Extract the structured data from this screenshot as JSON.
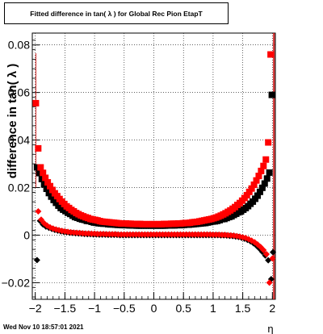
{
  "chart_data": {
    "type": "scatter",
    "title": "Fitted difference in tan( λ ) for Global Rec Pion EtapT",
    "xlabel": "η",
    "ylabel": "difference in tan( λ )",
    "xlim": [
      -2.05,
      2.05
    ],
    "ylim": [
      -0.027,
      0.085
    ],
    "x_ticks": [
      -2,
      -1.5,
      -1,
      -0.5,
      0,
      0.5,
      1,
      1.5,
      2
    ],
    "x_tick_labels": [
      "−2",
      "−1.5",
      "−1",
      "−0.5",
      "0",
      "0.5",
      "1",
      "1.5",
      "2"
    ],
    "y_ticks": [
      -0.02,
      0,
      0.02,
      0.04,
      0.06,
      0.08
    ],
    "y_tick_labels": [
      "−0.02",
      "0",
      "0.02",
      "0.04",
      "0.06",
      "0.08"
    ],
    "grid": true,
    "colors": {
      "black_series": "#000000",
      "red_series": "#ff0000",
      "marker_line": "#cc0000"
    },
    "markers": {
      "square_series": "square",
      "diamond_series": "diamond"
    },
    "series": [
      {
        "color": "black",
        "marker": "square",
        "x": [
          -1.97,
          -1.93,
          -1.89,
          -1.85,
          -1.81,
          -1.77,
          -1.73,
          -1.69,
          -1.65,
          -1.61,
          -1.57,
          -1.53,
          -1.49,
          -1.45,
          -1.41,
          -1.37,
          -1.33,
          -1.29,
          -1.25,
          -1.21,
          -1.17,
          -1.13,
          -1.09,
          -1.05,
          -1.01,
          -0.97,
          -0.93,
          -0.89,
          -0.85,
          -0.81,
          -0.77,
          -0.73,
          -0.69,
          -0.65,
          -0.61,
          -0.57,
          -0.53,
          -0.49,
          -0.45,
          -0.41,
          -0.37,
          -0.33,
          -0.29,
          -0.25,
          -0.21,
          -0.17,
          -0.13,
          -0.09,
          -0.05,
          -0.01,
          0.03,
          0.07,
          0.11,
          0.15,
          0.19,
          0.23,
          0.27,
          0.31,
          0.35,
          0.39,
          0.43,
          0.47,
          0.51,
          0.55,
          0.59,
          0.63,
          0.67,
          0.71,
          0.75,
          0.79,
          0.83,
          0.87,
          0.91,
          0.95,
          0.99,
          1.03,
          1.07,
          1.11,
          1.15,
          1.19,
          1.23,
          1.27,
          1.31,
          1.35,
          1.39,
          1.43,
          1.47,
          1.51,
          1.55,
          1.59,
          1.63,
          1.67,
          1.71,
          1.75,
          1.79,
          1.83,
          1.87,
          1.91,
          1.95,
          1.99
        ],
        "y": [
          0.0285,
          0.0261,
          0.0236,
          0.0213,
          0.0195,
          0.0177,
          0.0162,
          0.0148,
          0.0136,
          0.0124,
          0.0114,
          0.0107,
          0.0101,
          0.0094,
          0.0089,
          0.0082,
          0.0076,
          0.0073,
          0.0069,
          0.0066,
          0.0064,
          0.006,
          0.0059,
          0.0056,
          0.0053,
          0.0052,
          0.005,
          0.0049,
          0.0048,
          0.0048,
          0.0046,
          0.0045,
          0.0045,
          0.0044,
          0.0043,
          0.0043,
          0.0042,
          0.0042,
          0.0042,
          0.0041,
          0.0041,
          0.0041,
          0.004,
          0.004,
          0.004,
          0.004,
          0.004,
          0.004,
          0.004,
          0.004,
          0.004,
          0.004,
          0.004,
          0.004,
          0.004,
          0.0041,
          0.0041,
          0.0041,
          0.0041,
          0.0042,
          0.0042,
          0.0042,
          0.0043,
          0.0044,
          0.0044,
          0.0045,
          0.0046,
          0.0047,
          0.0048,
          0.0049,
          0.005,
          0.0051,
          0.0053,
          0.0055,
          0.0057,
          0.0058,
          0.006,
          0.0063,
          0.0067,
          0.0068,
          0.0072,
          0.0076,
          0.0079,
          0.0085,
          0.009,
          0.0096,
          0.01,
          0.0107,
          0.0114,
          0.0122,
          0.0132,
          0.0141,
          0.0153,
          0.0166,
          0.0182,
          0.0199,
          0.0217,
          0.0238,
          0.0263,
          0.059
        ]
      },
      {
        "color": "red",
        "marker": "square",
        "x": [
          -1.99,
          -1.95,
          -1.91,
          -1.87,
          -1.83,
          -1.79,
          -1.75,
          -1.71,
          -1.67,
          -1.63,
          -1.59,
          -1.55,
          -1.51,
          -1.47,
          -1.43,
          -1.39,
          -1.35,
          -1.31,
          -1.27,
          -1.23,
          -1.19,
          -1.15,
          -1.11,
          -1.07,
          -1.03,
          -0.99,
          -0.95,
          -0.91,
          -0.87,
          -0.83,
          -0.79,
          -0.75,
          -0.71,
          -0.67,
          -0.63,
          -0.59,
          -0.55,
          -0.51,
          -0.47,
          -0.43,
          -0.39,
          -0.35,
          -0.31,
          -0.27,
          -0.23,
          -0.19,
          -0.15,
          -0.11,
          -0.07,
          -0.03,
          0.01,
          0.05,
          0.09,
          0.13,
          0.17,
          0.21,
          0.25,
          0.29,
          0.33,
          0.37,
          0.41,
          0.45,
          0.49,
          0.53,
          0.57,
          0.61,
          0.65,
          0.69,
          0.73,
          0.77,
          0.81,
          0.85,
          0.89,
          0.93,
          0.97,
          1.01,
          1.05,
          1.09,
          1.13,
          1.17,
          1.21,
          1.25,
          1.29,
          1.33,
          1.37,
          1.41,
          1.45,
          1.49,
          1.53,
          1.57,
          1.61,
          1.65,
          1.69,
          1.73,
          1.77,
          1.81,
          1.85,
          1.89,
          1.93,
          1.97
        ],
        "y": [
          0.0555,
          0.0365,
          0.0285,
          0.0262,
          0.0241,
          0.0222,
          0.0206,
          0.019,
          0.0176,
          0.0164,
          0.0152,
          0.0141,
          0.0131,
          0.0121,
          0.0114,
          0.0106,
          0.01,
          0.0093,
          0.0088,
          0.0083,
          0.0079,
          0.0075,
          0.0072,
          0.0068,
          0.0066,
          0.0064,
          0.0062,
          0.0059,
          0.0057,
          0.0056,
          0.0055,
          0.0054,
          0.0053,
          0.0052,
          0.0051,
          0.005,
          0.0049,
          0.0049,
          0.0049,
          0.0048,
          0.0048,
          0.0047,
          0.0047,
          0.0047,
          0.0047,
          0.0046,
          0.0046,
          0.0046,
          0.0046,
          0.0046,
          0.0046,
          0.0046,
          0.0046,
          0.0046,
          0.0047,
          0.0047,
          0.0047,
          0.0048,
          0.0048,
          0.0048,
          0.0049,
          0.0049,
          0.005,
          0.0051,
          0.0051,
          0.0052,
          0.0054,
          0.0055,
          0.0056,
          0.0058,
          0.006,
          0.0062,
          0.0064,
          0.0066,
          0.0068,
          0.0071,
          0.0074,
          0.0078,
          0.0082,
          0.0087,
          0.0092,
          0.0098,
          0.0104,
          0.0111,
          0.0118,
          0.0127,
          0.0135,
          0.0145,
          0.0156,
          0.0168,
          0.0182,
          0.0196,
          0.0212,
          0.023,
          0.0249,
          0.027,
          0.0291,
          0.0318,
          0.039,
          0.076
        ]
      },
      {
        "color": "black",
        "marker": "diamond",
        "x": [
          -1.97,
          -1.92,
          -1.87,
          -1.82,
          -1.77,
          -1.72,
          -1.67,
          -1.62,
          -1.57,
          -1.52,
          -1.47,
          -1.42,
          -1.37,
          -1.32,
          -1.27,
          -1.22,
          -1.17,
          -1.12,
          -1.07,
          -1.02,
          -0.97,
          -0.92,
          -0.87,
          -0.82,
          -0.77,
          -0.72,
          -0.67,
          -0.62,
          -0.57,
          -0.52,
          -0.47,
          -0.42,
          -0.37,
          -0.32,
          -0.27,
          -0.22,
          -0.17,
          -0.12,
          -0.07,
          -0.02,
          0.03,
          0.08,
          0.13,
          0.18,
          0.23,
          0.28,
          0.33,
          0.38,
          0.43,
          0.48,
          0.53,
          0.58,
          0.63,
          0.68,
          0.73,
          0.78,
          0.83,
          0.88,
          0.93,
          0.98,
          1.03,
          1.08,
          1.13,
          1.18,
          1.23,
          1.28,
          1.33,
          1.38,
          1.43,
          1.48,
          1.53,
          1.58,
          1.63,
          1.68,
          1.73,
          1.78,
          1.83,
          1.88,
          1.93,
          1.98,
          2.01
        ],
        "y": [
          -0.0105,
          0.006,
          0.0045,
          0.0036,
          0.0031,
          0.0026,
          0.0022,
          0.0019,
          0.0016,
          0.0014,
          0.0012,
          0.001,
          0.0009,
          0.0008,
          0.0007,
          0.0006,
          0.0005,
          0.0004,
          0.0004,
          0.0003,
          0.0003,
          0.0002,
          0.0002,
          0.0002,
          0.0001,
          0.0001,
          0.0001,
          0.0001,
          0.0,
          0.0,
          0.0,
          0.0,
          0.0,
          0.0,
          0.0,
          0.0,
          0.0,
          0.0,
          0.0,
          0.0,
          0.0,
          0.0,
          0.0,
          0.0,
          0.0,
          0.0,
          0.0,
          0.0,
          0.0,
          0.0,
          0.0,
          0.0,
          0.0,
          0.0,
          0.0,
          0.0,
          0.0,
          0.0,
          0.0,
          0.0,
          0.0,
          0.0,
          -0.0001,
          -0.0001,
          -0.0002,
          -0.0003,
          -0.0004,
          -0.0006,
          -0.0008,
          -0.0011,
          -0.0015,
          -0.002,
          -0.0026,
          -0.0034,
          -0.0044,
          -0.0056,
          -0.007,
          -0.0086,
          -0.0106,
          -0.0185,
          -0.0072
        ]
      },
      {
        "color": "red",
        "marker": "diamond",
        "x": [
          -1.95,
          -1.9,
          -1.85,
          -1.8,
          -1.75,
          -1.7,
          -1.65,
          -1.6,
          -1.55,
          -1.5,
          -1.45,
          -1.4,
          -1.35,
          -1.3,
          -1.25,
          -1.2,
          -1.15,
          -1.1,
          -1.05,
          -1.0,
          -0.95,
          -0.9,
          -0.85,
          -0.8,
          -0.75,
          -0.7,
          -0.65,
          -0.6,
          -0.55,
          -0.5,
          -0.45,
          -0.4,
          -0.35,
          -0.3,
          -0.25,
          -0.2,
          -0.15,
          -0.1,
          -0.05,
          0.0,
          0.05,
          0.1,
          0.15,
          0.2,
          0.25,
          0.3,
          0.35,
          0.4,
          0.45,
          0.5,
          0.55,
          0.6,
          0.65,
          0.7,
          0.75,
          0.8,
          0.85,
          0.9,
          0.95,
          1.0,
          1.05,
          1.1,
          1.15,
          1.2,
          1.25,
          1.3,
          1.35,
          1.4,
          1.45,
          1.5,
          1.55,
          1.6,
          1.65,
          1.7,
          1.75,
          1.8,
          1.85,
          1.9,
          1.95,
          2.0
        ],
        "y": [
          0.01,
          0.0065,
          0.005,
          0.004,
          0.0033,
          0.0028,
          0.0024,
          0.0021,
          0.0018,
          0.0016,
          0.0014,
          0.0012,
          0.0011,
          0.001,
          0.0009,
          0.0008,
          0.0007,
          0.0007,
          0.0006,
          0.0006,
          0.0005,
          0.0005,
          0.0005,
          0.0004,
          0.0004,
          0.0004,
          0.0004,
          0.0003,
          0.0003,
          0.0003,
          0.0003,
          0.0003,
          0.0003,
          0.0003,
          0.0003,
          0.0003,
          0.0003,
          0.0003,
          0.0003,
          0.0003,
          0.0003,
          0.0003,
          0.0003,
          0.0003,
          0.0003,
          0.0003,
          0.0003,
          0.0003,
          0.0003,
          0.0003,
          0.0003,
          0.0003,
          0.0003,
          0.0003,
          0.0003,
          0.0003,
          0.0003,
          0.0003,
          0.0003,
          0.0002,
          0.0002,
          0.0002,
          0.0001,
          0.0001,
          0.0,
          -0.0001,
          -0.0002,
          -0.0004,
          -0.0006,
          -0.0009,
          -0.0012,
          -0.0017,
          -0.0023,
          -0.003,
          -0.0039,
          -0.005,
          -0.0063,
          -0.008,
          -0.02,
          -0.0098
        ]
      }
    ]
  },
  "footer": {
    "timestamp": "Wed Nov 10 18:57:01 2021"
  }
}
